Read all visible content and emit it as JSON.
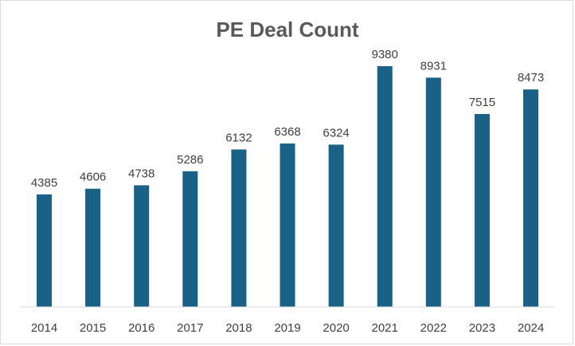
{
  "chart_data": {
    "type": "bar",
    "title": "PE Deal Count",
    "xlabel": "",
    "ylabel": "",
    "categories": [
      "2014",
      "2015",
      "2016",
      "2017",
      "2018",
      "2019",
      "2020",
      "2021",
      "2022",
      "2023",
      "2024"
    ],
    "values": [
      4385,
      4606,
      4738,
      5286,
      6132,
      6368,
      6324,
      9380,
      8931,
      7515,
      8473
    ],
    "data_labels": [
      "4385",
      "4606",
      "4738",
      "5286",
      "6132",
      "6368",
      "6324",
      "9380",
      "8931",
      "7515",
      "8473"
    ],
    "ylim": [
      0,
      10000
    ],
    "grid": false,
    "legend": "none",
    "bar_color": "#1a6187",
    "axis_color": "#d9d9d9"
  }
}
